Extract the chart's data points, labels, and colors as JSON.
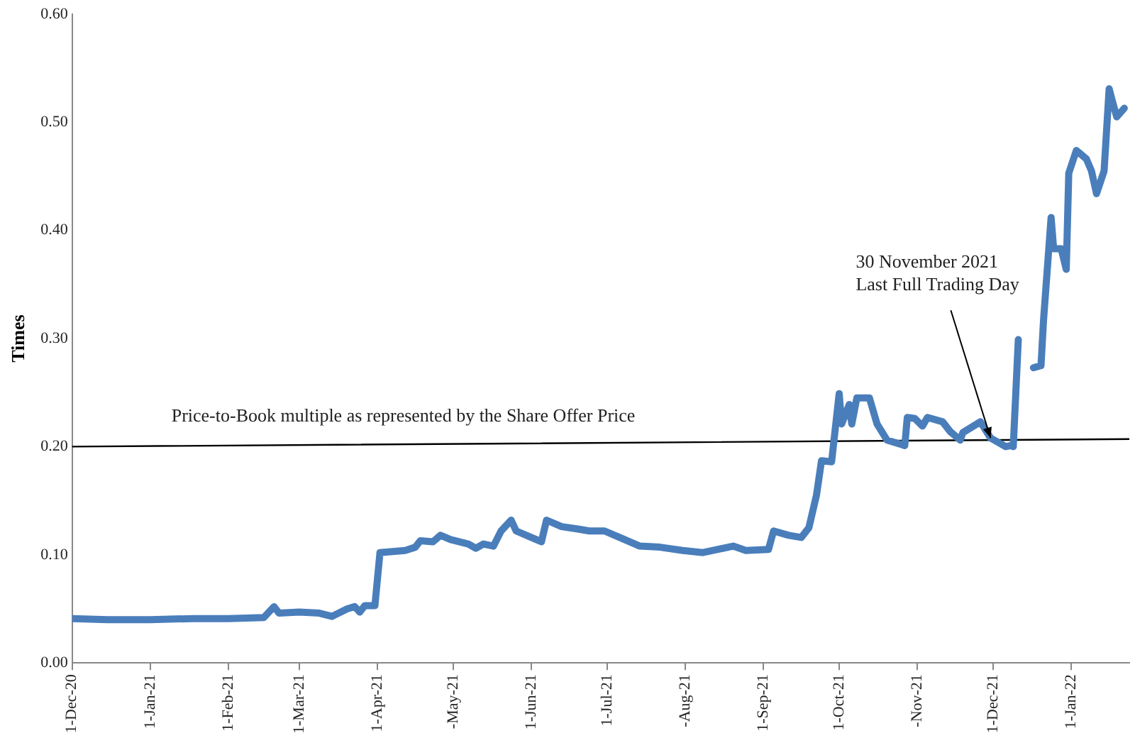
{
  "chart_data": {
    "type": "line",
    "ylabel": "Times",
    "marker": "none",
    "grid": false,
    "legend": false,
    "xlim": [
      "2020-12-01",
      "2022-01-24"
    ],
    "xticks": [
      {
        "value": "2020-12-01",
        "label": "1-Dec-20"
      },
      {
        "value": "2021-01-01",
        "label": "1-Jan-21"
      },
      {
        "value": "2021-02-01",
        "label": "1-Feb-21"
      },
      {
        "value": "2021-03-01",
        "label": "1-Mar-21"
      },
      {
        "value": "2021-04-01",
        "label": "1-Apr-21"
      },
      {
        "value": "2021-05-01",
        "label": "-May-21"
      },
      {
        "value": "2021-06-01",
        "label": "1-Jun-21"
      },
      {
        "value": "2021-07-01",
        "label": "1-Jul-21"
      },
      {
        "value": "2021-08-01",
        "label": "-Aug-21"
      },
      {
        "value": "2021-09-01",
        "label": "1-Sep-21"
      },
      {
        "value": "2021-10-01",
        "label": "1-Oct-21"
      },
      {
        "value": "2021-11-01",
        "label": "-Nov-21"
      },
      {
        "value": "2021-12-01",
        "label": "1-Dec-21"
      },
      {
        "value": "2022-01-01",
        "label": "1-Jan-22"
      }
    ],
    "ylim": [
      0,
      0.6
    ],
    "yticks": [
      {
        "value": 0,
        "label": "0.00"
      },
      {
        "value": 0.1,
        "label": "0.10"
      },
      {
        "value": 0.2,
        "label": "0.20"
      },
      {
        "value": 0.3,
        "label": "0.30"
      },
      {
        "value": 0.4,
        "label": "0.40"
      },
      {
        "value": 0.5,
        "label": "0.50"
      },
      {
        "value": 0.6,
        "label": "0.60"
      }
    ],
    "annotations": [
      {
        "text": "30 November 2021\nLast Full Trading Day",
        "x": "2021-11-30",
        "y": 0.208
      }
    ],
    "series": [
      {
        "color": "#4a7ebb",
        "line_style": "solid",
        "x": [
          "2020-12-01",
          "2020-12-15",
          "2021-01-01",
          "2021-01-18",
          "2021-02-01",
          "2021-02-15",
          "2021-02-19",
          "2021-02-21",
          "2021-03-01",
          "2021-03-09",
          "2021-03-14",
          "2021-03-20",
          "2021-03-23",
          "2021-03-25",
          "2021-03-27",
          "2021-03-31",
          "2021-04-02",
          "2021-04-12",
          "2021-04-16",
          "2021-04-18",
          "2021-04-23",
          "2021-04-26",
          "2021-04-30",
          "2021-05-07",
          "2021-05-10",
          "2021-05-13",
          "2021-05-17",
          "2021-05-20",
          "2021-05-24",
          "2021-05-26",
          "2021-06-01",
          "2021-06-05",
          "2021-06-07",
          "2021-06-13",
          "2021-06-19",
          "2021-06-24",
          "2021-06-30",
          "2021-07-06",
          "2021-07-14",
          "2021-07-22",
          "2021-07-31",
          "2021-08-08",
          "2021-08-14",
          "2021-08-20",
          "2021-08-25",
          "2021-09-03",
          "2021-09-05",
          "2021-09-11",
          "2021-09-16",
          "2021-09-19",
          "2021-09-22",
          "2021-09-24",
          "2021-09-28",
          "2021-10-01",
          "2021-10-02",
          "2021-10-05",
          "2021-10-06",
          "2021-10-08",
          "2021-10-13",
          "2021-10-16",
          "2021-10-20",
          "2021-10-27",
          "2021-10-28",
          "2021-10-31",
          "2021-11-03",
          "2021-11-05",
          "2021-11-11",
          "2021-11-14",
          "2021-11-18",
          "2021-11-19",
          "2021-11-26",
          "2021-11-30",
          "2021-12-06",
          "2021-12-08",
          "2021-12-09",
          "2021-12-11",
          "2021-12-13",
          "2021-12-17",
          "2021-12-20",
          "2021-12-21",
          "2021-12-24",
          "2021-12-25",
          "2021-12-28",
          "2021-12-30",
          "2021-12-31",
          "2022-01-03",
          "2022-01-07",
          "2022-01-09",
          "2022-01-11",
          "2022-01-14",
          "2022-01-16",
          "2022-01-17",
          "2022-01-19",
          "2022-01-22"
        ],
        "values": [
          0.041,
          0.04,
          0.04,
          0.041,
          0.041,
          0.042,
          0.052,
          0.046,
          0.047,
          0.046,
          0.043,
          0.05,
          0.052,
          0.047,
          0.053,
          0.053,
          0.102,
          0.104,
          0.107,
          0.113,
          0.112,
          0.118,
          0.114,
          0.11,
          0.106,
          0.11,
          0.108,
          0.122,
          0.132,
          0.122,
          0.116,
          0.112,
          0.132,
          0.126,
          0.124,
          0.122,
          0.122,
          0.116,
          0.108,
          0.107,
          0.104,
          0.102,
          0.105,
          0.108,
          0.104,
          0.105,
          0.122,
          0.118,
          0.116,
          0.125,
          0.155,
          0.187,
          0.186,
          0.249,
          0.221,
          0.239,
          0.221,
          0.245,
          0.245,
          0.221,
          0.206,
          0.201,
          0.227,
          0.226,
          0.219,
          0.227,
          0.223,
          0.214,
          0.206,
          0.213,
          0.223,
          0.208,
          0.2,
          0.201,
          0.2,
          0.299,
          null,
          0.273,
          0.275,
          0.317,
          0.412,
          0.383,
          0.383,
          0.364,
          0.453,
          0.474,
          0.466,
          0.455,
          0.434,
          0.455,
          0.531,
          0.522,
          0.505,
          0.513
        ]
      },
      {
        "name": "Price-to-Book multiple as represented by the Share Offer Price",
        "color": "#000000",
        "line_style": "solid",
        "x": [
          "2020-12-01",
          "2022-01-24"
        ],
        "values": [
          0.2,
          0.207
        ]
      }
    ]
  }
}
